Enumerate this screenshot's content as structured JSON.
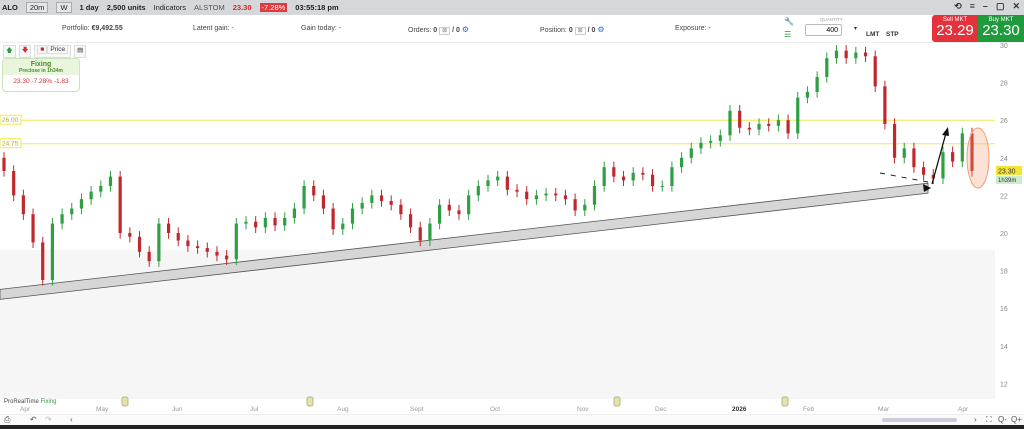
{
  "toolbar": {
    "symbol": "ALO",
    "interval": "20m",
    "w": "W",
    "period": "1 day",
    "units": "2,500 units",
    "indicators": "Indicators",
    "name": "ALSTOM",
    "price": "23.30",
    "change": "-7.28%",
    "time": "03:55:18 pm"
  },
  "account": {
    "portfolio_label": "Portfolio:",
    "portfolio_value": "€9,492.55",
    "latent": "Latent gain: -",
    "gain_today": "Gain today: -",
    "orders_label": "Orders:",
    "orders_a": "0",
    "orders_b": "/ 0",
    "position_label": "Position:",
    "position_a": "0",
    "position_b": "/ 0",
    "exposure": "Exposure: -"
  },
  "order": {
    "quantity_label": "QUANTITY",
    "quantity": "400",
    "lmt": "LMT",
    "stp": "STP",
    "sell_label": "Sell MKT",
    "sell_price": "23.29",
    "buy_label": "Buy MKT",
    "buy_price": "23.30"
  },
  "chart_tools": {
    "price": "Price"
  },
  "fixing": {
    "title": "Fixing",
    "subtitle": "Preclose in 1h34m",
    "value": "23.30 -7.28% -1.83"
  },
  "footer": {
    "brand": "ProRealTime",
    "status": "Fixing"
  },
  "colors": {
    "up": "#2ea043",
    "down": "#c0282e",
    "level": "#f2e94e",
    "sell": "#e3323c",
    "buy": "#1f9a3c"
  },
  "chart_data": {
    "type": "candlestick",
    "ylim": [
      11,
      31
    ],
    "y_ticks": [
      30,
      28,
      26,
      24,
      22,
      20,
      18,
      16,
      14,
      12
    ],
    "x_labels": [
      "Apr",
      "May",
      "Jun",
      "Jul",
      "Aug",
      "Sept",
      "Oct",
      "Nov",
      "Dec",
      "2026",
      "Feb",
      "Mar",
      "Apr"
    ],
    "first_open": 24,
    "closes": [
      23.3,
      22,
      21,
      19.5,
      17.5,
      20.5,
      21,
      21.3,
      21.8,
      22.2,
      22.5,
      23,
      20,
      19.8,
      19,
      18.5,
      20.5,
      20,
      19.6,
      19.3,
      19.2,
      19,
      18.8,
      18.6,
      20.5,
      20.6,
      20.3,
      20.8,
      20.4,
      20.8,
      21.3,
      22.5,
      22,
      21.3,
      20.2,
      20.5,
      21.3,
      21.6,
      22,
      21.7,
      21.5,
      21,
      20.3,
      19.6,
      20.5,
      21.5,
      21.2,
      21,
      22,
      22.5,
      22.8,
      23,
      22.3,
      22.2,
      21.8,
      22,
      22.1,
      22,
      21.8,
      21.2,
      21.5,
      22.5,
      23.5,
      23,
      22.8,
      23.2,
      23.1,
      22.5,
      22.5,
      23.5,
      24,
      24.5,
      24.8,
      24.9,
      25.2,
      26.5,
      25.6,
      25.5,
      25.8,
      25.7,
      26,
      25.3,
      27.2,
      27.5,
      28.3,
      29.3,
      29.7,
      29.3,
      29.6,
      29.4,
      27.8,
      25.8,
      24,
      24.5,
      23.5,
      23.1,
      22.9,
      24.3,
      23.8,
      25.3,
      23.3
    ],
    "levels": [
      {
        "label": "26.00",
        "value": 26
      },
      {
        "label": "24.75",
        "value": 24.75
      }
    ],
    "last_price": {
      "label": "23.30",
      "value": 23.3,
      "countdown": "1h39m"
    },
    "trendline": {
      "start": 17.0,
      "end": 22.65
    }
  }
}
